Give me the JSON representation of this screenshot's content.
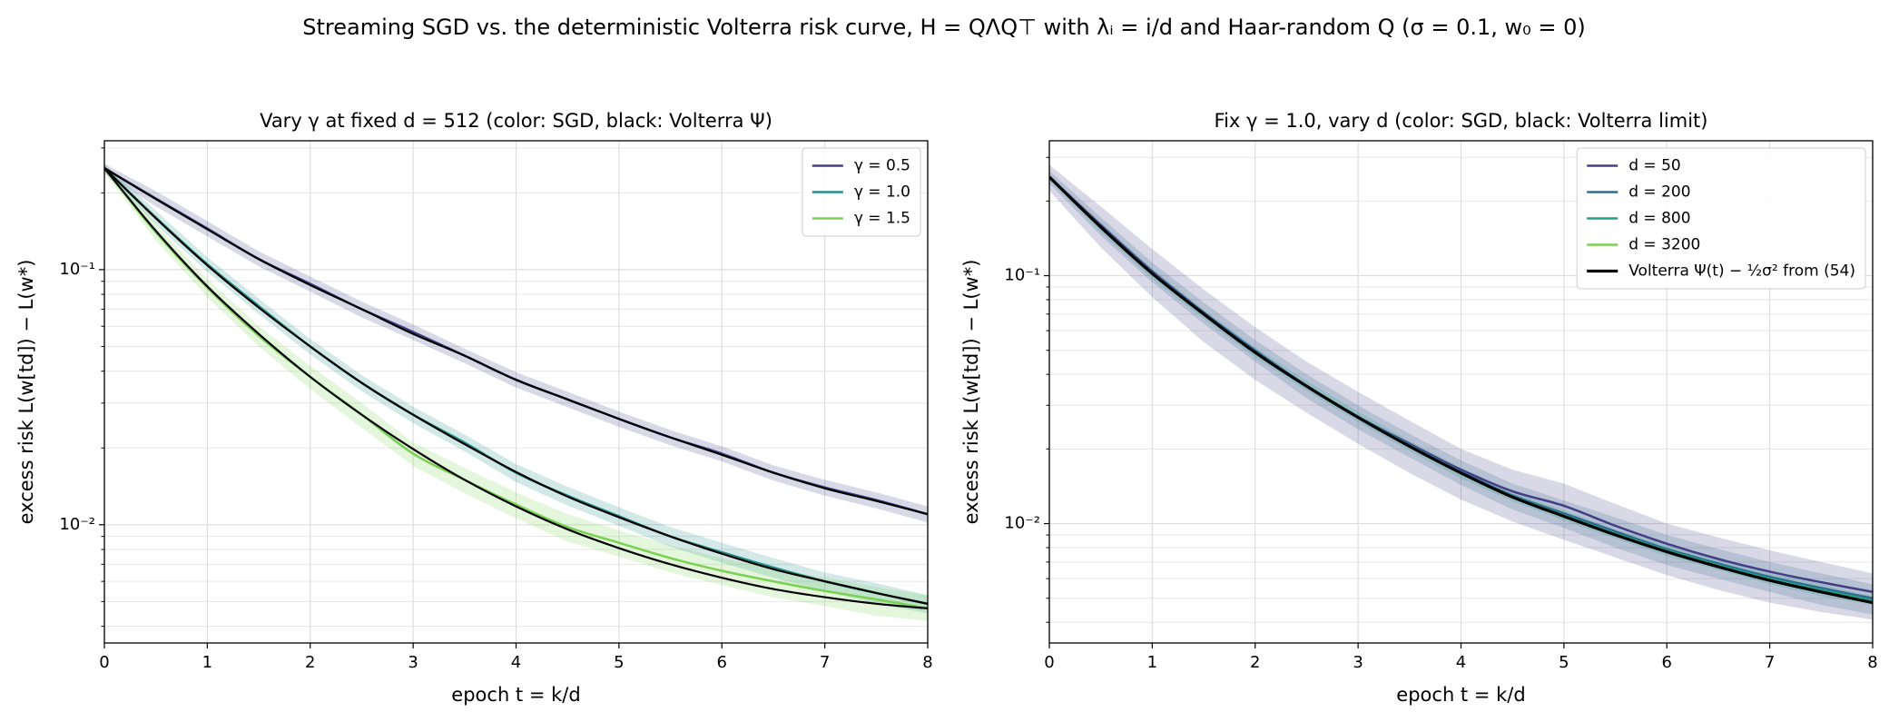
{
  "title": "Streaming SGD vs. the deterministic Volterra risk curve, H = QΛQ⊤ with λᵢ = i/d and Haar-random Q (σ = 0.1, w₀ = 0)",
  "chart_data": [
    {
      "type": "line",
      "title": "Vary γ at fixed d = 512 (color: SGD, black: Volterra Ψ)",
      "xlabel": "epoch t = k/d",
      "ylabel": "excess risk L(w[td]) − L(w*)",
      "log_y": true,
      "grid": true,
      "legend": "upper right",
      "x": [
        0,
        0.5,
        1,
        1.5,
        2,
        2.5,
        3,
        3.5,
        4,
        4.5,
        5,
        5.5,
        6,
        6.5,
        7,
        7.5,
        8
      ],
      "xlim": [
        0,
        8
      ],
      "xticks": [
        0,
        1,
        2,
        3,
        4,
        5,
        6,
        7,
        8
      ],
      "ylim": [
        0.00344,
        0.32
      ],
      "yticks": [
        {
          "value": 0.01,
          "label": "10⁻²"
        },
        {
          "value": 0.1,
          "label": "10⁻¹"
        }
      ],
      "yminorticks": [
        0.004,
        0.005,
        0.006,
        0.007,
        0.008,
        0.009,
        0.02,
        0.03,
        0.04,
        0.05,
        0.06,
        0.07,
        0.08,
        0.09,
        0.2,
        0.3
      ],
      "series": [
        {
          "name": "γ = 0.5",
          "color": "#433e85",
          "values": [
            0.25,
            0.19,
            0.145,
            0.11,
            0.088,
            0.07,
            0.057,
            0.046,
            0.037,
            0.031,
            0.026,
            0.022,
            0.019,
            0.016,
            0.014,
            0.0125,
            0.011
          ],
          "lower": [
            0.24,
            0.177,
            0.135,
            0.103,
            0.082,
            0.065,
            0.053,
            0.043,
            0.0345,
            0.0289,
            0.0242,
            0.0205,
            0.0177,
            0.0149,
            0.013,
            0.0116,
            0.0102
          ],
          "upper": [
            0.26,
            0.203,
            0.155,
            0.118,
            0.094,
            0.075,
            0.061,
            0.049,
            0.0396,
            0.0332,
            0.0278,
            0.0235,
            0.0203,
            0.0171,
            0.015,
            0.0134,
            0.0118
          ]
        },
        {
          "name": "γ = 1.0",
          "color": "#21918c",
          "values": [
            0.25,
            0.16,
            0.105,
            0.072,
            0.05,
            0.036,
            0.027,
            0.021,
            0.016,
            0.013,
            0.0108,
            0.009,
            0.0078,
            0.0068,
            0.006,
            0.0054,
            0.0049
          ],
          "lower": [
            0.24,
            0.15,
            0.098,
            0.067,
            0.0465,
            0.0334,
            0.025,
            0.0194,
            0.0147,
            0.0119,
            0.0099,
            0.0082,
            0.0071,
            0.0062,
            0.0055,
            0.0049,
            0.0045
          ],
          "upper": [
            0.26,
            0.17,
            0.112,
            0.077,
            0.0535,
            0.0386,
            0.029,
            0.0226,
            0.0173,
            0.0141,
            0.0117,
            0.0098,
            0.0085,
            0.0074,
            0.0065,
            0.0059,
            0.0053
          ]
        },
        {
          "name": "γ = 1.5",
          "color": "#7ad151",
          "values": [
            0.25,
            0.14,
            0.085,
            0.055,
            0.038,
            0.027,
            0.019,
            0.015,
            0.012,
            0.0098,
            0.0085,
            0.0074,
            0.0066,
            0.006,
            0.0055,
            0.0051,
            0.0047
          ],
          "lower": [
            0.24,
            0.13,
            0.078,
            0.05,
            0.034,
            0.024,
            0.017,
            0.0133,
            0.0106,
            0.0086,
            0.0075,
            0.0065,
            0.0058,
            0.0052,
            0.0048,
            0.0044,
            0.0042
          ],
          "upper": [
            0.26,
            0.15,
            0.092,
            0.06,
            0.042,
            0.03,
            0.021,
            0.0167,
            0.0134,
            0.011,
            0.0095,
            0.0083,
            0.0074,
            0.0067,
            0.0062,
            0.0057,
            0.0053
          ]
        }
      ],
      "reference": [
        {
          "color": "#000000",
          "values": [
            0.25,
            0.189,
            0.144,
            0.11,
            0.087,
            0.07,
            0.056,
            0.046,
            0.037,
            0.031,
            0.026,
            0.022,
            0.0188,
            0.016,
            0.0139,
            0.0124,
            0.011
          ]
        },
        {
          "color": "#000000",
          "values": [
            0.25,
            0.159,
            0.104,
            0.071,
            0.05,
            0.036,
            0.027,
            0.0207,
            0.0161,
            0.0129,
            0.0107,
            0.009,
            0.0077,
            0.0067,
            0.006,
            0.0054,
            0.0049
          ]
        },
        {
          "color": "#000000",
          "values": [
            0.25,
            0.142,
            0.086,
            0.056,
            0.038,
            0.027,
            0.0198,
            0.015,
            0.0118,
            0.0096,
            0.0081,
            0.007,
            0.0062,
            0.0056,
            0.0052,
            0.0049,
            0.0047
          ]
        }
      ]
    },
    {
      "type": "line",
      "title": "Fix γ = 1.0, vary d (color: SGD, black: Volterra limit)",
      "xlabel": "epoch t = k/d",
      "ylabel": "excess risk L(w[td]) − L(w*)",
      "log_y": true,
      "grid": true,
      "legend": "upper right",
      "x": [
        0,
        0.5,
        1,
        1.5,
        2,
        2.5,
        3,
        3.5,
        4,
        4.5,
        5,
        5.5,
        6,
        6.5,
        7,
        7.5,
        8
      ],
      "xlim": [
        0,
        8
      ],
      "xticks": [
        0,
        1,
        2,
        3,
        4,
        5,
        6,
        7,
        8
      ],
      "ylim": [
        0.0033,
        0.35
      ],
      "yticks": [
        {
          "value": 0.01,
          "label": "10⁻²"
        },
        {
          "value": 0.1,
          "label": "10⁻¹"
        }
      ],
      "yminorticks": [
        0.004,
        0.005,
        0.006,
        0.007,
        0.008,
        0.009,
        0.02,
        0.03,
        0.04,
        0.05,
        0.06,
        0.07,
        0.08,
        0.09,
        0.2,
        0.3
      ],
      "series": [
        {
          "name": "d = 50",
          "color": "#433e85",
          "values": [
            0.25,
            0.16,
            0.104,
            0.071,
            0.049,
            0.036,
            0.027,
            0.021,
            0.0165,
            0.0135,
            0.0118,
            0.0098,
            0.0083,
            0.0072,
            0.0064,
            0.0058,
            0.0053
          ],
          "lower": [
            0.22,
            0.13,
            0.082,
            0.054,
            0.038,
            0.028,
            0.021,
            0.016,
            0.0125,
            0.0102,
            0.0086,
            0.0073,
            0.0062,
            0.0054,
            0.0048,
            0.0044,
            0.0041
          ],
          "upper": [
            0.28,
            0.19,
            0.128,
            0.088,
            0.062,
            0.045,
            0.034,
            0.026,
            0.02,
            0.0165,
            0.0145,
            0.012,
            0.01,
            0.0088,
            0.0078,
            0.007,
            0.0063
          ]
        },
        {
          "name": "d = 200",
          "color": "#31688e",
          "values": [
            0.25,
            0.158,
            0.103,
            0.071,
            0.05,
            0.036,
            0.027,
            0.0208,
            0.0162,
            0.013,
            0.011,
            0.0093,
            0.0079,
            0.0069,
            0.0061,
            0.0055,
            0.005
          ],
          "lower": [
            0.235,
            0.145,
            0.094,
            0.064,
            0.045,
            0.032,
            0.024,
            0.0185,
            0.0143,
            0.0114,
            0.0096,
            0.008,
            0.0068,
            0.006,
            0.0053,
            0.0047,
            0.0043
          ],
          "upper": [
            0.265,
            0.172,
            0.113,
            0.078,
            0.055,
            0.04,
            0.03,
            0.023,
            0.018,
            0.0145,
            0.0124,
            0.0106,
            0.009,
            0.0079,
            0.007,
            0.0063,
            0.0057
          ]
        },
        {
          "name": "d = 800",
          "color": "#1fa187",
          "values": [
            0.25,
            0.157,
            0.102,
            0.07,
            0.049,
            0.036,
            0.027,
            0.0206,
            0.016,
            0.0129,
            0.0108,
            0.0091,
            0.0078,
            0.0068,
            0.006,
            0.0054,
            0.0049
          ],
          "lower": [
            0.243,
            0.15,
            0.097,
            0.067,
            0.0467,
            0.0343,
            0.0257,
            0.0196,
            0.0152,
            0.0123,
            0.0103,
            0.0087,
            0.0074,
            0.0065,
            0.0057,
            0.0051,
            0.0047
          ],
          "upper": [
            0.257,
            0.164,
            0.107,
            0.073,
            0.0513,
            0.0377,
            0.0283,
            0.0216,
            0.0168,
            0.0135,
            0.0113,
            0.0095,
            0.0082,
            0.0071,
            0.0063,
            0.0057,
            0.0051
          ]
        },
        {
          "name": "d = 3200",
          "color": "#7ad151",
          "values": [
            0.25,
            0.157,
            0.102,
            0.07,
            0.049,
            0.0358,
            0.0268,
            0.0205,
            0.016,
            0.0128,
            0.0107,
            0.009,
            0.0077,
            0.0067,
            0.0059,
            0.0053,
            0.0048
          ]
        },
        {
          "name": "Volterra Ψ(t) − ½σ² from (54)",
          "color": "#000000",
          "values": [
            0.25,
            0.157,
            0.102,
            0.07,
            0.049,
            0.0358,
            0.0268,
            0.0205,
            0.016,
            0.0128,
            0.0107,
            0.009,
            0.0077,
            0.0067,
            0.0059,
            0.0053,
            0.0048
          ]
        }
      ]
    }
  ]
}
